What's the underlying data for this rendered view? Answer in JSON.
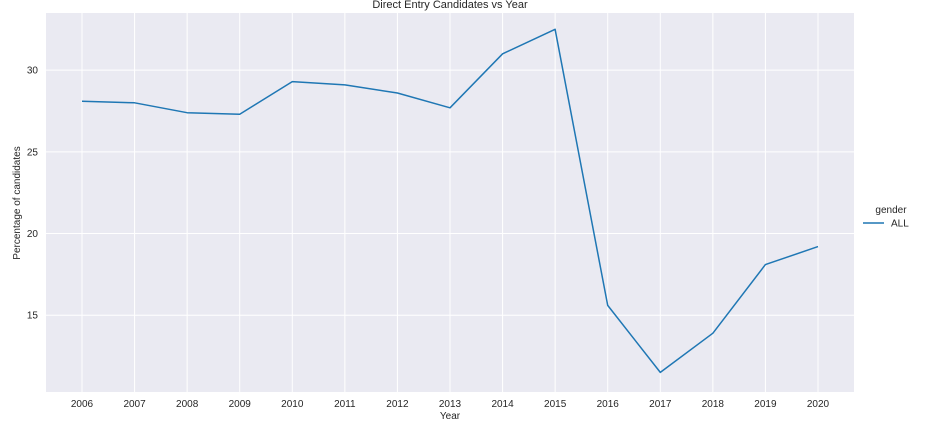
{
  "chart_data": {
    "type": "line",
    "title": "Direct Entry Candidates vs Year",
    "xlabel": "Year",
    "ylabel": "Percentage of candidates",
    "x": [
      "2006",
      "2007",
      "2008",
      "2009",
      "2010",
      "2011",
      "2012",
      "2013",
      "2014",
      "2015",
      "2016",
      "2017",
      "2018",
      "2019",
      "2020"
    ],
    "series": [
      {
        "name": "ALL",
        "color": "#1f77b4",
        "values": [
          28.1,
          28.0,
          27.4,
          27.3,
          29.3,
          29.1,
          28.6,
          27.7,
          31.0,
          32.5,
          15.6,
          11.5,
          13.9,
          18.1,
          19.2
        ]
      }
    ],
    "ylim": [
      10.3,
      33.5
    ],
    "yticks": [
      15,
      20,
      25,
      30
    ],
    "grid": true,
    "background_color": "#eaeaf2",
    "legend": {
      "title": "gender",
      "placement": "right"
    }
  }
}
